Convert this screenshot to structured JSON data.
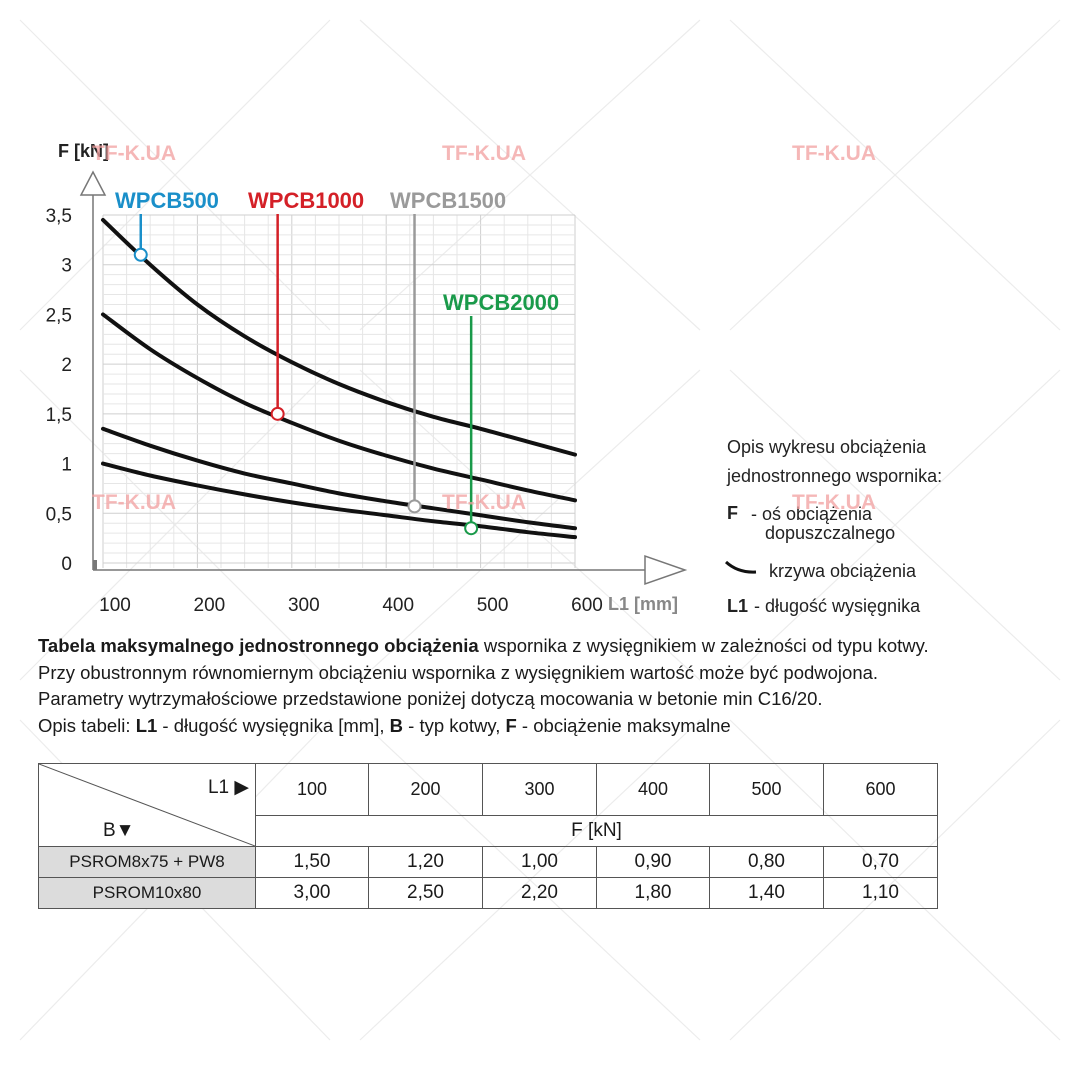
{
  "watermark": "TF-K.UA",
  "chart_data": {
    "type": "line",
    "xlabel": "L1 [mm]",
    "ylabel": "F [kN]",
    "xlim": [
      100,
      600
    ],
    "ylim": [
      0,
      3.5
    ],
    "x_ticks": [
      "100",
      "200",
      "300",
      "400",
      "500",
      "600"
    ],
    "y_ticks": [
      "0",
      "0,5",
      "1",
      "1,5",
      "2",
      "2,5",
      "3",
      "3,5"
    ],
    "grid": true,
    "series": [
      {
        "name": "WPCB500",
        "color": "#1a8fc9",
        "x": [
          100,
          150,
          200,
          250,
          300,
          350,
          400,
          450,
          500,
          550,
          600
        ],
        "y": [
          3.45,
          3.0,
          2.6,
          2.28,
          2.02,
          1.8,
          1.62,
          1.47,
          1.35,
          1.22,
          1.09
        ],
        "marker": {
          "x": 140,
          "y": 3.1
        }
      },
      {
        "name": "WPCB1000",
        "color": "#d42027",
        "x": [
          100,
          150,
          200,
          250,
          300,
          350,
          400,
          450,
          500,
          550,
          600
        ],
        "y": [
          2.5,
          2.15,
          1.86,
          1.61,
          1.41,
          1.23,
          1.08,
          0.95,
          0.84,
          0.73,
          0.63
        ],
        "marker": {
          "x": 285,
          "y": 1.5
        }
      },
      {
        "name": "WPCB1500",
        "color": "#9a9a9a",
        "x": [
          100,
          150,
          200,
          250,
          300,
          350,
          400,
          450,
          500,
          550,
          600
        ],
        "y": [
          1.35,
          1.18,
          1.03,
          0.9,
          0.8,
          0.7,
          0.62,
          0.55,
          0.48,
          0.41,
          0.35
        ],
        "marker": {
          "x": 430,
          "y": 0.57
        }
      },
      {
        "name": "WPCB2000",
        "color": "#1a9a4a",
        "x": [
          100,
          150,
          200,
          250,
          300,
          350,
          400,
          450,
          500,
          550,
          600
        ],
        "y": [
          1.0,
          0.88,
          0.78,
          0.69,
          0.61,
          0.54,
          0.48,
          0.42,
          0.37,
          0.31,
          0.26
        ],
        "marker": {
          "x": 490,
          "y": 0.35
        }
      }
    ]
  },
  "legend": {
    "title_line1": "Opis wykresu obciążenia",
    "title_line2": "jednostronnego wspornika:",
    "f_key": "F",
    "f_desc_line1": "- oś obciążenia",
    "f_desc_line2": "dopuszczalnego",
    "curve_desc": "krzywa obciążenia",
    "l1_key": "L1",
    "l1_desc": "- długość wysięgnika"
  },
  "description": {
    "line1_bold": "Tabela maksymalnego jednostronnego obciążenia",
    "line1_rest": " wspornika z wysięgnikiem w zależności od typu kotwy.",
    "line2": "Przy obustronnym równomiernym obciążeniu wspornika z wysięgnikiem wartość może być podwojona.",
    "line3": "Parametry wytrzymałościowe przedstawione poniżej dotyczą mocowania w betonie min C16/20.",
    "line4_a": "Opis tabeli: ",
    "line4_b": "L1",
    "line4_c": " - długość wysięgnika [mm], ",
    "line4_d": "B",
    "line4_e": " - typ kotwy, ",
    "line4_f": "F",
    "line4_g": " - obciążenie maksymalne"
  },
  "table": {
    "corner_top": "L1 ▶",
    "corner_bottom": "B▼",
    "headers": [
      "100",
      "200",
      "300",
      "400",
      "500",
      "600"
    ],
    "unit": "F [kN]",
    "rows": [
      {
        "name": "PSROM8x75 + PW8",
        "values": [
          "1,50",
          "1,20",
          "1,00",
          "0,90",
          "0,80",
          "0,70"
        ]
      },
      {
        "name": "PSROM10x80",
        "values": [
          "3,00",
          "2,50",
          "2,20",
          "1,80",
          "1,40",
          "1,10"
        ]
      }
    ]
  }
}
